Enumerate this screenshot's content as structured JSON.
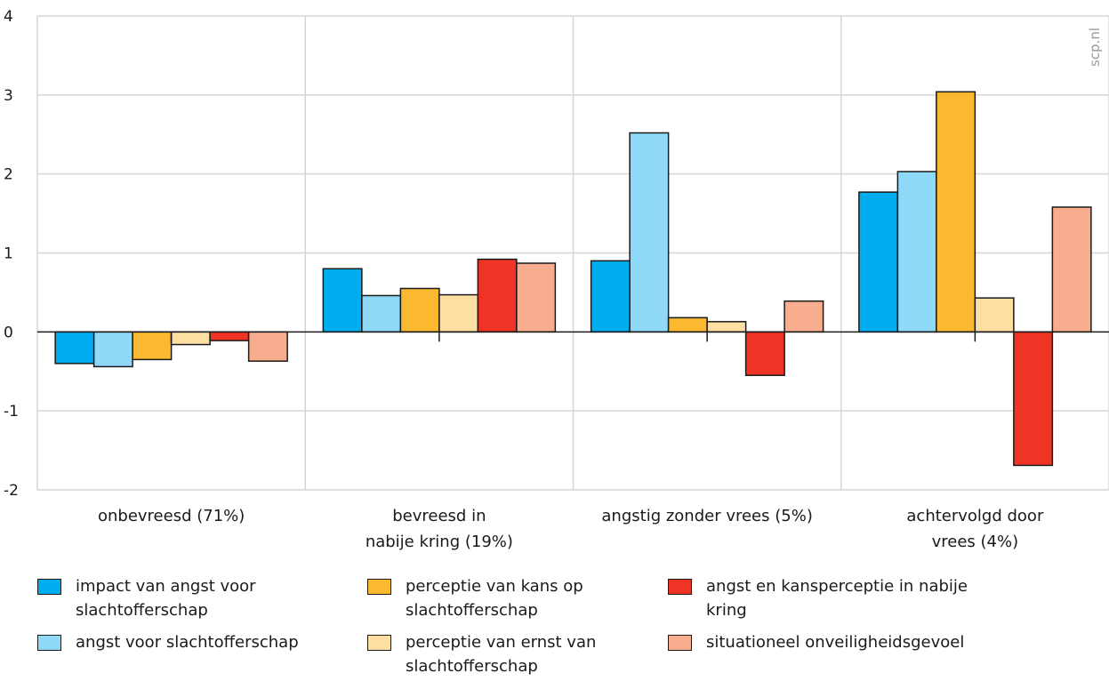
{
  "watermark": "scp.nl",
  "chart_data": {
    "type": "bar",
    "title": "",
    "xlabel": "",
    "ylabel": "",
    "ylim": [
      -2,
      4
    ],
    "yticks": [
      "4",
      "3",
      "2",
      "1",
      "0",
      "-1",
      "-2"
    ],
    "grid": true,
    "legend_position": "bottom",
    "categories": [
      [
        "onbevreesd (71%)"
      ],
      [
        "bevreesd in",
        "nabije kring (19%)"
      ],
      [
        "angstig zonder vrees (5%)"
      ],
      [
        "achtervolgd door",
        "vrees (4%)"
      ]
    ],
    "series": [
      {
        "name": "impact van angst voor slachtofferschap",
        "color": "#00aeef",
        "values": [
          -0.4,
          0.8,
          0.9,
          1.77
        ]
      },
      {
        "name": "angst voor slachtofferschap",
        "color": "#8ed8f8",
        "values": [
          -0.44,
          0.46,
          2.52,
          2.03
        ]
      },
      {
        "name": "perceptie van kans op slachtofferschap",
        "color": "#fbb931",
        "values": [
          -0.35,
          0.55,
          0.18,
          3.04
        ]
      },
      {
        "name": "perceptie van ernst van slachtofferschap",
        "color": "#fddfa4",
        "values": [
          -0.16,
          0.47,
          0.13,
          0.43
        ]
      },
      {
        "name": "angst en kansperceptie in nabije kring",
        "color": "#ef3324",
        "values": [
          -0.11,
          0.92,
          -0.55,
          -1.69
        ]
      },
      {
        "name": "situationeel onveiligheidsgevoel",
        "color": "#f9ad8f",
        "values": [
          -0.37,
          0.87,
          0.39,
          1.58
        ]
      }
    ]
  },
  "legend": [
    {
      "lines": [
        "impact van angst voor",
        "slachtofferschap"
      ],
      "color": "#00aeef"
    },
    {
      "lines": [
        "angst voor slachtofferschap"
      ],
      "color": "#8ed8f8"
    },
    {
      "lines": [
        "perceptie van kans op",
        "slachtofferschap"
      ],
      "color": "#fbb931"
    },
    {
      "lines": [
        "perceptie van ernst van",
        "slachtofferschap"
      ],
      "color": "#fddfa4"
    },
    {
      "lines": [
        "angst en kansperceptie in nabije",
        "kring"
      ],
      "color": "#ef3324"
    },
    {
      "lines": [
        "situationeel onveiligheidsgevoel"
      ],
      "color": "#f9ad8f"
    }
  ]
}
